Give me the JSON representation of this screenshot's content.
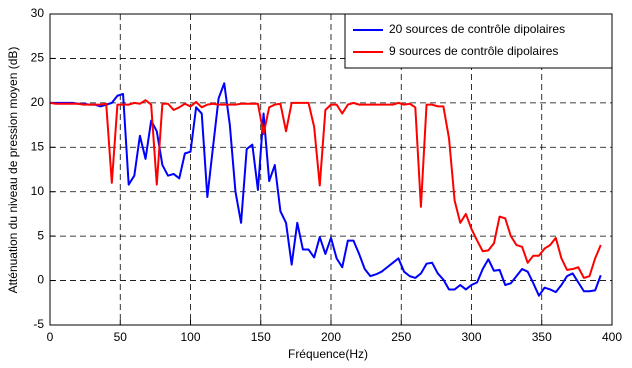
{
  "chart_data": {
    "type": "line",
    "xlabel": "Fréquence(Hz)",
    "ylabel": "Atténuation du niveau de pression moyen (dB)",
    "x": [
      0,
      4,
      8,
      12,
      16,
      20,
      24,
      28,
      32,
      36,
      40,
      44,
      48,
      52,
      56,
      60,
      64,
      68,
      72,
      76,
      80,
      84,
      88,
      92,
      96,
      100,
      104,
      108,
      112,
      116,
      120,
      124,
      128,
      132,
      136,
      140,
      144,
      148,
      152,
      156,
      160,
      164,
      168,
      172,
      176,
      180,
      184,
      188,
      192,
      196,
      200,
      204,
      208,
      212,
      216,
      220,
      224,
      228,
      232,
      236,
      240,
      244,
      248,
      252,
      256,
      260,
      264,
      268,
      272,
      276,
      280,
      284,
      288,
      292,
      296,
      300,
      304,
      308,
      312,
      316,
      320,
      324,
      328,
      332,
      336,
      340,
      344,
      348,
      352,
      356,
      360,
      364,
      368,
      372,
      376,
      380,
      384,
      388,
      392
    ],
    "series": [
      {
        "name": "20 sources de contrôle dipolaires",
        "color": "#0000ff",
        "values": [
          20,
          20,
          20,
          20,
          20,
          19.9,
          19.9,
          19.8,
          19.8,
          19.6,
          19.8,
          20,
          20.8,
          21,
          10.8,
          11.8,
          16.3,
          13.7,
          18,
          16.8,
          13,
          11.8,
          12,
          11.5,
          14.3,
          14.5,
          19.5,
          18.8,
          9.4,
          15,
          20.5,
          22.2,
          17.5,
          10,
          6.5,
          14.8,
          15.3,
          10.2,
          18.8,
          11.2,
          13,
          7.8,
          6.5,
          1.8,
          6.5,
          3.5,
          3.5,
          2.6,
          4.9,
          3,
          4.8,
          2.5,
          1.5,
          4.5,
          4.5,
          3,
          1.3,
          0.5,
          0.7,
          1,
          1.5,
          2,
          2.5,
          1,
          0.5,
          0.3,
          0.8,
          1.9,
          2,
          0.8,
          0.1,
          -1,
          -1,
          -0.5,
          -1,
          -0.5,
          -0.2,
          1.3,
          2.4,
          1.1,
          1.2,
          -0.5,
          -0.3,
          0.5,
          1.3,
          1,
          -0.3,
          -1.7,
          -0.8,
          -1,
          -1.3,
          -0.5,
          0.5,
          0.8,
          -0.2,
          -1.2,
          -1.2,
          -1.1,
          0.6
        ]
      },
      {
        "name": "9 sources de contrôle dipolaires",
        "color": "#ff0000",
        "values": [
          20,
          19.9,
          19.9,
          19.9,
          19.9,
          19.9,
          19.8,
          19.8,
          19.8,
          19.8,
          19.9,
          11,
          19.8,
          19.8,
          19.8,
          20,
          19.9,
          20.3,
          19.8,
          10.8,
          19.9,
          19.9,
          19.2,
          19.5,
          19.9,
          19.6,
          20.1,
          19.5,
          19.8,
          19.9,
          19.8,
          19.8,
          19.8,
          19.8,
          19.9,
          19.9,
          19.9,
          19.9,
          16.5,
          19.5,
          19.8,
          19.9,
          16.8,
          20,
          20,
          20,
          20,
          17.3,
          10.7,
          19.2,
          19.8,
          19.8,
          18.8,
          19.8,
          20,
          19.8,
          19.8,
          19.8,
          19.8,
          19.8,
          19.8,
          19.8,
          20,
          19.8,
          19.9,
          19.5,
          8.3,
          19.8,
          19.8,
          19.6,
          19.6,
          16,
          9,
          6.5,
          7.5,
          5.8,
          4.5,
          3.3,
          3.4,
          4.2,
          7.2,
          7,
          5,
          4,
          3.8,
          2,
          2.8,
          2.8,
          3.6,
          4,
          4.8,
          2.5,
          1.2,
          1.3,
          1.5,
          0.3,
          0.5,
          2.5,
          4
        ]
      }
    ],
    "xlim": [
      0,
      400
    ],
    "xticks": [
      0,
      50,
      100,
      150,
      200,
      250,
      300,
      350,
      400
    ],
    "ylim": [
      -5,
      30
    ],
    "yticks": [
      -5,
      0,
      5,
      10,
      15,
      20,
      25,
      30
    ],
    "grid": true,
    "legend": "upper right"
  }
}
